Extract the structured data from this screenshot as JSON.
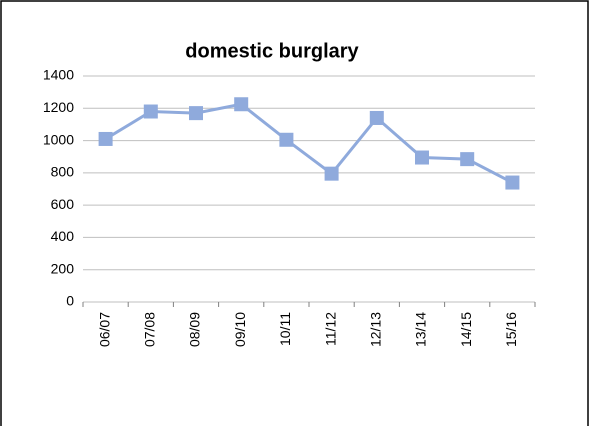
{
  "chart_data": {
    "type": "line",
    "title": "domestic burglary",
    "categories": [
      "06/07",
      "07/08",
      "08/09",
      "09/10",
      "10/11",
      "11/12",
      "12/13",
      "13/14",
      "14/15",
      "15/16"
    ],
    "series": [
      {
        "name": "domestic burglary",
        "color": "#8faadc",
        "values": [
          1010,
          1180,
          1170,
          1225,
          1005,
          795,
          1140,
          895,
          885,
          740
        ]
      }
    ],
    "ylim": [
      0,
      1400
    ],
    "yticks": [
      0,
      200,
      400,
      600,
      800,
      1000,
      1200,
      1400
    ],
    "grid": true
  }
}
